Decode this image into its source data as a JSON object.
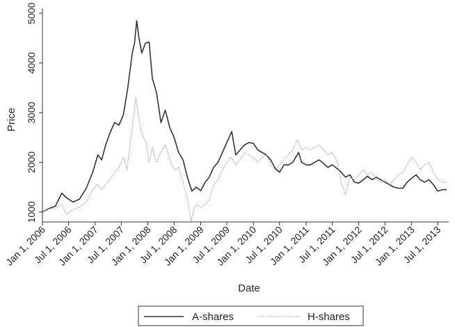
{
  "chart_data": {
    "type": "line",
    "xlabel": "Date",
    "ylabel": "Price",
    "xlim": [
      "2006-01-01",
      "2013-09-15"
    ],
    "ylim": [
      800,
      5100
    ],
    "grid": false,
    "legend_position": "bottom-center",
    "y_ticks": [
      1000,
      2000,
      3000,
      4000,
      5000
    ],
    "y_tick_labels": [
      "1000",
      "2000",
      "3000",
      "4000",
      "5000"
    ],
    "x_ticks": [
      "2006-01-01",
      "2006-07-01",
      "2007-01-01",
      "2007-07-01",
      "2008-01-01",
      "2008-07-01",
      "2009-01-01",
      "2009-07-01",
      "2010-01-01",
      "2010-07-01",
      "2011-01-01",
      "2011-07-01",
      "2012-01-01",
      "2012-07-01",
      "2013-01-01",
      "2013-07-01"
    ],
    "x_tick_labels": [
      "Jan 1, 2006",
      "Jul 1, 2006",
      "Jan 1, 2007",
      "Jul 1, 2007",
      "Jan 1, 2008",
      "Jul 1, 2008",
      "Jan 1, 2009",
      "Jul 1, 2009",
      "Jan 1, 2010",
      "Jul 1, 2010",
      "Jan 1, 2011",
      "Jul 1, 2011",
      "Jan 1, 2012",
      "Jul 1, 2012",
      "Jan 1, 2013",
      "Jul 1, 2013"
    ],
    "series": [
      {
        "name": "A-shares",
        "color": "#333333",
        "style": "solid",
        "points": [
          [
            "2006-01-01",
            1000
          ],
          [
            "2006-02-15",
            1070
          ],
          [
            "2006-04-01",
            1120
          ],
          [
            "2006-05-15",
            1380
          ],
          [
            "2006-06-15",
            1290
          ],
          [
            "2006-08-01",
            1200
          ],
          [
            "2006-09-15",
            1260
          ],
          [
            "2006-11-01",
            1480
          ],
          [
            "2006-12-15",
            1800
          ],
          [
            "2007-01-20",
            2150
          ],
          [
            "2007-02-15",
            2050
          ],
          [
            "2007-03-15",
            2350
          ],
          [
            "2007-04-15",
            2600
          ],
          [
            "2007-05-15",
            2800
          ],
          [
            "2007-06-15",
            2750
          ],
          [
            "2007-07-15",
            2950
          ],
          [
            "2007-08-15",
            3500
          ],
          [
            "2007-09-15",
            4200
          ],
          [
            "2007-10-01",
            4400
          ],
          [
            "2007-10-16",
            4850
          ],
          [
            "2007-11-01",
            4500
          ],
          [
            "2007-11-20",
            4200
          ],
          [
            "2007-12-15",
            4400
          ],
          [
            "2008-01-10",
            4420
          ],
          [
            "2008-02-01",
            3700
          ],
          [
            "2008-03-01",
            3400
          ],
          [
            "2008-04-01",
            2800
          ],
          [
            "2008-05-01",
            3050
          ],
          [
            "2008-06-01",
            2700
          ],
          [
            "2008-07-01",
            2500
          ],
          [
            "2008-08-01",
            2200
          ],
          [
            "2008-09-01",
            2050
          ],
          [
            "2008-10-01",
            1700
          ],
          [
            "2008-11-01",
            1420
          ],
          [
            "2008-12-01",
            1500
          ],
          [
            "2009-01-01",
            1430
          ],
          [
            "2009-02-01",
            1600
          ],
          [
            "2009-03-01",
            1700
          ],
          [
            "2009-04-01",
            1900
          ],
          [
            "2009-05-01",
            2000
          ],
          [
            "2009-06-01",
            2200
          ],
          [
            "2009-07-01",
            2400
          ],
          [
            "2009-08-04",
            2620
          ],
          [
            "2009-09-01",
            2150
          ],
          [
            "2009-10-01",
            2250
          ],
          [
            "2009-11-01",
            2350
          ],
          [
            "2009-12-01",
            2400
          ],
          [
            "2010-01-01",
            2380
          ],
          [
            "2010-02-01",
            2250
          ],
          [
            "2010-03-01",
            2200
          ],
          [
            "2010-04-01",
            2150
          ],
          [
            "2010-05-01",
            2050
          ],
          [
            "2010-06-01",
            1880
          ],
          [
            "2010-07-01",
            1800
          ],
          [
            "2010-08-01",
            1950
          ],
          [
            "2010-09-01",
            1950
          ],
          [
            "2010-10-01",
            2000
          ],
          [
            "2010-11-10",
            2200
          ],
          [
            "2010-12-01",
            2000
          ],
          [
            "2011-01-01",
            1950
          ],
          [
            "2011-02-01",
            1950
          ],
          [
            "2011-03-01",
            2000
          ],
          [
            "2011-04-01",
            2050
          ],
          [
            "2011-05-01",
            1980
          ],
          [
            "2011-06-01",
            1900
          ],
          [
            "2011-07-01",
            1950
          ],
          [
            "2011-08-01",
            1880
          ],
          [
            "2011-09-01",
            1800
          ],
          [
            "2011-10-01",
            1700
          ],
          [
            "2011-11-01",
            1750
          ],
          [
            "2011-12-01",
            1600
          ],
          [
            "2012-01-01",
            1580
          ],
          [
            "2012-02-01",
            1650
          ],
          [
            "2012-03-01",
            1720
          ],
          [
            "2012-04-01",
            1650
          ],
          [
            "2012-05-01",
            1700
          ],
          [
            "2012-06-01",
            1650
          ],
          [
            "2012-07-01",
            1600
          ],
          [
            "2012-08-01",
            1550
          ],
          [
            "2012-09-01",
            1500
          ],
          [
            "2012-10-01",
            1480
          ],
          [
            "2012-11-01",
            1480
          ],
          [
            "2012-12-01",
            1600
          ],
          [
            "2013-01-01",
            1680
          ],
          [
            "2013-02-01",
            1750
          ],
          [
            "2013-03-01",
            1650
          ],
          [
            "2013-04-01",
            1600
          ],
          [
            "2013-05-01",
            1650
          ],
          [
            "2013-06-01",
            1550
          ],
          [
            "2013-07-01",
            1420
          ],
          [
            "2013-08-01",
            1450
          ],
          [
            "2013-09-01",
            1450
          ]
        ]
      },
      {
        "name": "H-shares",
        "color": "#a6a6a6",
        "style": "dotted",
        "points": [
          [
            "2006-01-01",
            1000
          ],
          [
            "2006-02-15",
            1060
          ],
          [
            "2006-04-01",
            1080
          ],
          [
            "2006-05-15",
            1150
          ],
          [
            "2006-06-15",
            960
          ],
          [
            "2006-08-01",
            1050
          ],
          [
            "2006-09-15",
            1100
          ],
          [
            "2006-11-01",
            1200
          ],
          [
            "2006-12-15",
            1450
          ],
          [
            "2007-01-20",
            1550
          ],
          [
            "2007-02-15",
            1450
          ],
          [
            "2007-03-15",
            1550
          ],
          [
            "2007-04-15",
            1650
          ],
          [
            "2007-05-15",
            1800
          ],
          [
            "2007-06-15",
            1900
          ],
          [
            "2007-07-15",
            2100
          ],
          [
            "2007-08-10",
            1850
          ],
          [
            "2007-09-01",
            2400
          ],
          [
            "2007-09-20",
            2800
          ],
          [
            "2007-10-10",
            3300
          ],
          [
            "2007-10-25",
            3000
          ],
          [
            "2007-11-10",
            2700
          ],
          [
            "2007-12-01",
            2500
          ],
          [
            "2007-12-20",
            2400
          ],
          [
            "2008-01-10",
            2000
          ],
          [
            "2008-02-01",
            2300
          ],
          [
            "2008-03-01",
            2000
          ],
          [
            "2008-04-01",
            2200
          ],
          [
            "2008-05-01",
            2350
          ],
          [
            "2008-06-01",
            2050
          ],
          [
            "2008-07-01",
            1850
          ],
          [
            "2008-08-01",
            1900
          ],
          [
            "2008-09-01",
            1600
          ],
          [
            "2008-10-01",
            1250
          ],
          [
            "2008-10-28",
            820
          ],
          [
            "2008-11-15",
            1050
          ],
          [
            "2008-12-01",
            1150
          ],
          [
            "2009-01-01",
            1100
          ],
          [
            "2009-02-01",
            1150
          ],
          [
            "2009-03-01",
            1250
          ],
          [
            "2009-04-01",
            1550
          ],
          [
            "2009-05-01",
            1650
          ],
          [
            "2009-06-01",
            1850
          ],
          [
            "2009-07-01",
            2000
          ],
          [
            "2009-08-01",
            2100
          ],
          [
            "2009-09-01",
            1950
          ],
          [
            "2009-10-01",
            2050
          ],
          [
            "2009-11-01",
            2200
          ],
          [
            "2009-12-01",
            2150
          ],
          [
            "2010-01-01",
            2100
          ],
          [
            "2010-02-01",
            2000
          ],
          [
            "2010-03-01",
            2100
          ],
          [
            "2010-04-01",
            2150
          ],
          [
            "2010-05-01",
            1950
          ],
          [
            "2010-06-01",
            1850
          ],
          [
            "2010-07-01",
            1950
          ],
          [
            "2010-08-01",
            2050
          ],
          [
            "2010-09-01",
            2150
          ],
          [
            "2010-10-01",
            2250
          ],
          [
            "2010-11-01",
            2450
          ],
          [
            "2010-12-01",
            2250
          ],
          [
            "2011-01-01",
            2300
          ],
          [
            "2011-02-01",
            2250
          ],
          [
            "2011-03-01",
            2300
          ],
          [
            "2011-04-01",
            2350
          ],
          [
            "2011-05-01",
            2250
          ],
          [
            "2011-06-01",
            2150
          ],
          [
            "2011-07-01",
            2200
          ],
          [
            "2011-08-01",
            2050
          ],
          [
            "2011-09-01",
            1600
          ],
          [
            "2011-10-01",
            1350
          ],
          [
            "2011-11-01",
            1700
          ],
          [
            "2011-12-01",
            1650
          ],
          [
            "2012-01-01",
            1750
          ],
          [
            "2012-02-01",
            1850
          ],
          [
            "2012-03-01",
            1750
          ],
          [
            "2012-04-01",
            1800
          ],
          [
            "2012-05-01",
            1650
          ],
          [
            "2012-06-01",
            1600
          ],
          [
            "2012-07-01",
            1650
          ],
          [
            "2012-08-01",
            1550
          ],
          [
            "2012-09-01",
            1650
          ],
          [
            "2012-10-01",
            1750
          ],
          [
            "2012-11-01",
            1800
          ],
          [
            "2012-12-01",
            1950
          ],
          [
            "2013-01-01",
            2100
          ],
          [
            "2013-02-01",
            2000
          ],
          [
            "2013-03-01",
            1850
          ],
          [
            "2013-04-01",
            1950
          ],
          [
            "2013-05-01",
            2000
          ],
          [
            "2013-06-01",
            1800
          ],
          [
            "2013-07-01",
            1650
          ],
          [
            "2013-08-01",
            1600
          ],
          [
            "2013-09-01",
            1600
          ]
        ]
      }
    ]
  }
}
